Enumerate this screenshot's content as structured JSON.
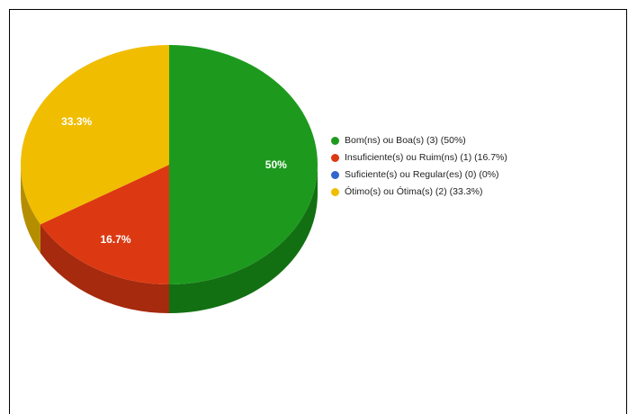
{
  "chart_data": {
    "type": "pie",
    "style": "3d",
    "slices": [
      {
        "label": "Bom(ns) ou Boa(s)",
        "count": 3,
        "value": 50,
        "legend": "Bom(ns) ou Boa(s) (3) (50%)",
        "data_label": "50%",
        "color": "#1d9a1d",
        "side_color": "#127012"
      },
      {
        "label": "Insuficiente(s) ou Ruim(ns)",
        "count": 1,
        "value": 16.7,
        "legend": "Insuficiente(s) ou Ruim(ns) (1) (16.7%)",
        "data_label": "16.7%",
        "color": "#dc3912",
        "side_color": "#a52a0e"
      },
      {
        "label": "Suficiente(s) ou Regular(es)",
        "count": 0,
        "value": 0,
        "legend": "Suficiente(s) ou Regular(es) (0) (0%)",
        "data_label": "",
        "color": "#3366cc",
        "side_color": "#264c99"
      },
      {
        "label": "Ótimo(s) ou Ótima(s)",
        "count": 2,
        "value": 33.3,
        "legend": "Ótimo(s) ou Ótima(s) (2) (33.3%)",
        "data_label": "33.3%",
        "color": "#f0bd00",
        "side_color": "#b48e00"
      }
    ],
    "legend_position": "right"
  }
}
